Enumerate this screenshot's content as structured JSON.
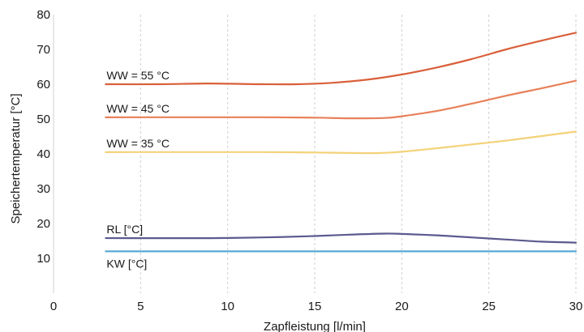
{
  "chart_data": {
    "type": "line",
    "xlabel": "Zapfleistung [l/min]",
    "ylabel": "Speichertemperatur  [°C]",
    "xlim": [
      0,
      30
    ],
    "ylim": [
      0,
      80
    ],
    "x_ticks": [
      "0",
      "5",
      "10",
      "15",
      "20",
      "25",
      "30"
    ],
    "y_ticks": [
      "10",
      "20",
      "30",
      "40",
      "50",
      "60",
      "70",
      "80"
    ],
    "grid": "vertical",
    "series": [
      {
        "name": "WW = 55 °C",
        "color": "#d9603a",
        "x": [
          3,
          6,
          9,
          12,
          14,
          16,
          18,
          20,
          22,
          24,
          26,
          28,
          30
        ],
        "y": [
          60,
          60,
          60.2,
          60,
          60,
          60.4,
          61.3,
          62.8,
          64.8,
          67.2,
          70,
          72.5,
          74.8
        ]
      },
      {
        "name": "WW = 45 °C",
        "color": "#e8805a",
        "x": [
          3,
          6,
          9,
          12,
          15,
          17,
          19,
          20,
          22,
          24,
          26,
          28,
          30
        ],
        "y": [
          50.5,
          50.5,
          50.5,
          50.5,
          50.4,
          50.2,
          50.3,
          50.8,
          52.3,
          54.4,
          56.7,
          58.8,
          61
        ]
      },
      {
        "name": "WW = 35 °C",
        "color": "#f4d27a",
        "x": [
          3,
          6,
          9,
          12,
          15,
          18,
          19,
          20,
          22,
          24,
          26,
          28,
          30
        ],
        "y": [
          40.5,
          40.5,
          40.5,
          40.5,
          40.4,
          40.2,
          40.3,
          40.6,
          41.6,
          42.7,
          43.8,
          45.1,
          46.4
        ]
      },
      {
        "name": "RL [°C]",
        "color": "#5c5a8e",
        "x": [
          3,
          6,
          9,
          12,
          15,
          17,
          19,
          20,
          22,
          24,
          26,
          28,
          30
        ],
        "y": [
          15.8,
          15.8,
          15.8,
          16,
          16.4,
          16.8,
          17.1,
          17,
          16.6,
          16,
          15.4,
          14.8,
          14.5
        ]
      },
      {
        "name": "KW [°C]",
        "color": "#5aa9d6",
        "x": [
          3,
          30
        ],
        "y": [
          12,
          12
        ]
      }
    ]
  }
}
